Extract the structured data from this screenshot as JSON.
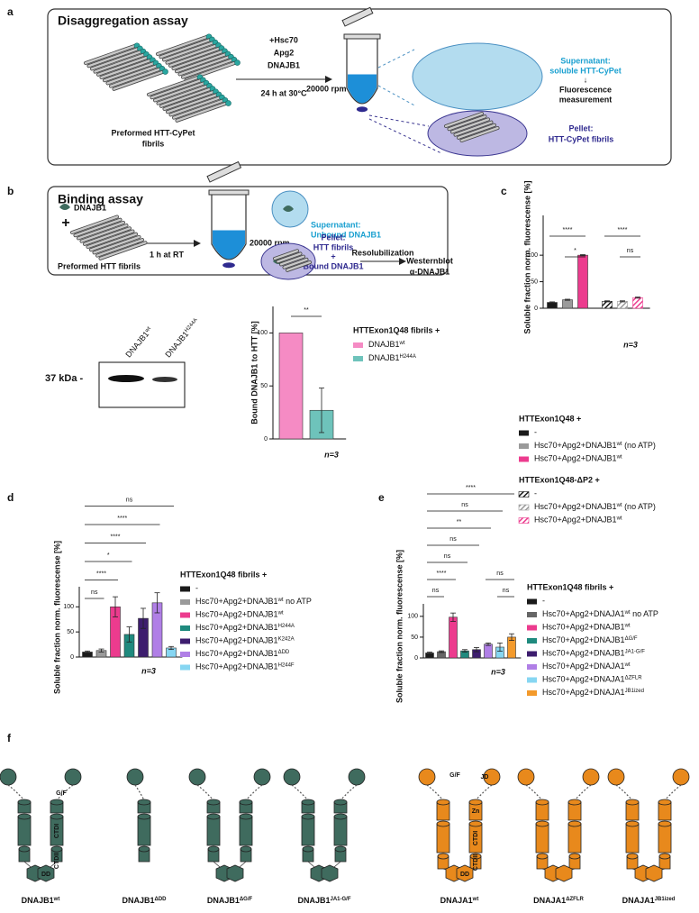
{
  "panel_labels": {
    "a": "a",
    "b": "b",
    "c": "c",
    "d": "d",
    "e": "e",
    "f": "f"
  },
  "panel_a": {
    "title": "Disaggregation assay",
    "treatment": [
      "+Hsc70",
      "Apg2",
      "DNAJB1",
      "24 h at 30°C"
    ],
    "speed": "20000 rpm",
    "fibrils": [
      "Preformed HTT-CyPet",
      "fibrils"
    ],
    "supernatant": [
      "Supernatant:",
      "soluble HTT-CyPet",
      "↓",
      "Fluorescence",
      "measurement"
    ],
    "pellet": [
      "Pellet:",
      "HTT-CyPet fibrils"
    ]
  },
  "panel_b": {
    "title": "Binding assay",
    "protein": "DNAJB1",
    "plus": "+",
    "fibrils": "Preformed HTT fibrils",
    "incubation": "1 h at RT",
    "speed": "20000 rpm",
    "supernatant": [
      "Supernatant:",
      "Unbound DNAJB1"
    ],
    "pellet": [
      "Pellet:",
      "HTT fibrils",
      "+",
      "Bound DNAJB1"
    ],
    "resolubilization": "Resolubilization",
    "readout": [
      "Westernblot",
      "α-DNAJB1"
    ]
  },
  "blot": {
    "marker": "37 kDa -",
    "lanes": [
      {
        "name": "DNAJB1",
        "sup": "wt"
      },
      {
        "name": "DNAJB1",
        "sup": "H244A"
      }
    ]
  },
  "chart_data": [
    {
      "type": "bar",
      "ylabel": "Bound DNAJB1 to HTT [%]",
      "ylim": [
        0,
        125
      ],
      "yticks": [
        0,
        50,
        100
      ],
      "legend_titles": [
        "HTTExon1Q48 fibrils +"
      ],
      "series": [
        {
          "name": "DNAJB1",
          "sup": "wt",
          "color": "#f58bc4",
          "group": 0,
          "values": [
            100
          ]
        },
        {
          "name": "DNAJB1",
          "sup": "H244A",
          "color": "#6ec3bb",
          "group": 0,
          "values": [
            27
          ],
          "errors": [
            21
          ]
        }
      ],
      "significance": [
        {
          "from": 0,
          "to": 1,
          "label": "**"
        }
      ],
      "n_label": "n=3"
    },
    {
      "type": "bar",
      "ylabel": "Soluble fraction norm. fluorescense [%]",
      "ylim": [
        0,
        175
      ],
      "yticks": [
        0,
        50,
        100
      ],
      "legend_titles": [
        "HTTExon1Q48 +",
        "HTTExon1Q48-ΔP2 +"
      ],
      "series": [
        {
          "name": "-",
          "color": "#1a1a1a",
          "group": 0,
          "values": [
            11
          ],
          "errors": [
            1
          ]
        },
        {
          "name": "Hsc70+Apg2+DNAJB1",
          "sup": "wt",
          "suffix": " (no ATP)",
          "color": "#9a9a9a",
          "group": 0,
          "values": [
            16
          ],
          "errors": [
            1
          ]
        },
        {
          "name": "Hsc70+Apg2+DNAJB1",
          "sup": "wt",
          "color": "#ec3b8e",
          "group": 0,
          "values": [
            100
          ],
          "errors": [
            1
          ]
        },
        {
          "name": "-",
          "color": "#1a1a1a",
          "group": 1,
          "hatch": true,
          "values": [
            13
          ],
          "errors": [
            1
          ]
        },
        {
          "name": "Hsc70+Apg2+DNAJB1",
          "sup": "wt",
          "suffix": " (no ATP)",
          "color": "#9a9a9a",
          "group": 1,
          "hatch": true,
          "values": [
            13
          ],
          "errors": [
            1
          ]
        },
        {
          "name": "Hsc70+Apg2+DNAJB1",
          "sup": "wt",
          "color": "#ec3b8e",
          "group": 1,
          "hatch": true,
          "values": [
            20
          ],
          "errors": [
            1
          ]
        }
      ],
      "significance": [
        {
          "from": 1,
          "to": 2,
          "label": "*"
        },
        {
          "from": 0,
          "to": 2,
          "label": "****"
        },
        {
          "from": 4,
          "to": 5,
          "label": "ns"
        },
        {
          "from": 3,
          "to": 5,
          "label": "****"
        }
      ],
      "n_label": "n=3"
    },
    {
      "type": "bar",
      "ylabel": "Soluble fraction norm. fluorescense [%]",
      "ylim": [
        0,
        140
      ],
      "yticks": [
        0,
        50,
        100
      ],
      "legend_titles": [
        "HTTExon1Q48 fibrils +"
      ],
      "series": [
        {
          "name": "-",
          "color": "#1a1a1a",
          "group": 0,
          "values": [
            10
          ],
          "errors": [
            2
          ]
        },
        {
          "name": "Hsc70+Apg2+DNAJB1",
          "sup": "wt",
          "suffix": " no ATP",
          "color": "#9a9a9a",
          "group": 0,
          "values": [
            13
          ],
          "errors": [
            3
          ]
        },
        {
          "name": "Hsc70+Apg2+DNAJB1",
          "sup": "wt",
          "color": "#ec3b8e",
          "group": 0,
          "values": [
            100
          ],
          "errors": [
            20
          ]
        },
        {
          "name": "Hsc70+Apg2+DNAJB1",
          "sup": "H244A",
          "color": "#1f8a7e",
          "group": 0,
          "values": [
            45
          ],
          "errors": [
            15
          ]
        },
        {
          "name": "Hsc70+Apg2+DNAJB1",
          "sup": "K242A",
          "color": "#3d1d6e",
          "group": 0,
          "values": [
            77
          ],
          "errors": [
            20
          ]
        },
        {
          "name": "Hsc70+Apg2+DNAJB1",
          "sup": "ΔDD",
          "color": "#b07fe6",
          "group": 0,
          "values": [
            108
          ],
          "errors": [
            20
          ]
        },
        {
          "name": "Hsc70+Apg2+DNAJB1",
          "sup": "H244F",
          "color": "#86d6f2",
          "group": 0,
          "values": [
            18
          ],
          "errors": [
            3
          ]
        }
      ],
      "significance": [
        {
          "from": 0,
          "to": 1,
          "label": "ns"
        },
        {
          "from": 0,
          "to": 2,
          "label": "****"
        },
        {
          "from": 0,
          "to": 3,
          "label": "*"
        },
        {
          "from": 0,
          "to": 4,
          "label": "****"
        },
        {
          "from": 0,
          "to": 5,
          "label": "****"
        },
        {
          "from": 0,
          "to": 6,
          "label": "ns"
        }
      ],
      "n_label": "n=3"
    },
    {
      "type": "bar",
      "ylabel": "Soluble fraction norm. fluorescense [%]",
      "ylim": [
        0,
        130
      ],
      "yticks": [
        0,
        50,
        100
      ],
      "legend_titles": [
        "HTTExon1Q48 fibrils +"
      ],
      "series": [
        {
          "name": "-",
          "color": "#1a1a1a",
          "group": 0,
          "values": [
            12
          ],
          "errors": [
            2
          ]
        },
        {
          "name": "Hsc70+Apg2+DNAJA1",
          "sup": "wt",
          "suffix": " no ATP",
          "color": "#666666",
          "group": 0,
          "values": [
            15
          ],
          "errors": [
            2
          ]
        },
        {
          "name": "Hsc70+Apg2+DNAJB1",
          "sup": "wt",
          "color": "#ec3b8e",
          "group": 0,
          "values": [
            98
          ],
          "errors": [
            10
          ]
        },
        {
          "name": "Hsc70+Apg2+DNAJB1",
          "sup": "ΔG/F",
          "color": "#1f8a7e",
          "group": 0,
          "values": [
            17
          ],
          "errors": [
            3
          ]
        },
        {
          "name": "Hsc70+Apg2+DNAJB1",
          "sup": "JA1-G/F",
          "color": "#3d1d6e",
          "group": 0,
          "values": [
            20
          ],
          "errors": [
            5
          ]
        },
        {
          "name": "Hsc70+Apg2+DNAJA1",
          "sup": "wt",
          "color": "#b07fe6",
          "group": 0,
          "values": [
            33
          ],
          "errors": [
            3
          ]
        },
        {
          "name": "Hsc70+Apg2+DNAJA1",
          "sup": "ΔZFLR",
          "color": "#86d6f2",
          "group": 0,
          "values": [
            26
          ],
          "errors": [
            10
          ]
        },
        {
          "name": "Hsc70+Apg2+DNAJA1",
          "sup": "JB1ized",
          "color": "#f39a2b",
          "group": 0,
          "values": [
            50
          ],
          "errors": [
            8
          ]
        }
      ],
      "significance": [
        {
          "from": 0,
          "to": 1,
          "label": "ns"
        },
        {
          "from": 6,
          "to": 7,
          "label": "ns"
        },
        {
          "from": 0,
          "to": 2,
          "label": "****"
        },
        {
          "from": 5,
          "to": 7,
          "label": "ns"
        },
        {
          "from": 0,
          "to": 3,
          "label": "ns"
        },
        {
          "from": 0,
          "to": 4,
          "label": "ns"
        },
        {
          "from": 0,
          "to": 5,
          "label": "**"
        },
        {
          "from": 0,
          "to": 6,
          "label": "ns"
        },
        {
          "from": 0,
          "to": 7,
          "label": "****"
        }
      ],
      "n_label": "n=3"
    }
  ],
  "panel_f": {
    "domains": {
      "gf": "G/F",
      "ctd1": "CTDI",
      "ctd2": "CTDII",
      "dd": "DD",
      "jd": "JD",
      "zn": "Zn"
    },
    "constructs": [
      {
        "name": "DNAJB1",
        "sup": "wt"
      },
      {
        "name": "DNAJB1",
        "sup": "ΔDD"
      },
      {
        "name": "DNAJB1",
        "sup": "ΔG/F"
      },
      {
        "name": "DNAJB1",
        "sup": "JA1-G/F"
      },
      {
        "name": "DNAJA1",
        "sup": "wt"
      },
      {
        "name": "DNAJA1",
        "sup": "ΔZFLR"
      },
      {
        "name": "DNAJA1",
        "sup": "JB1ized"
      }
    ]
  }
}
